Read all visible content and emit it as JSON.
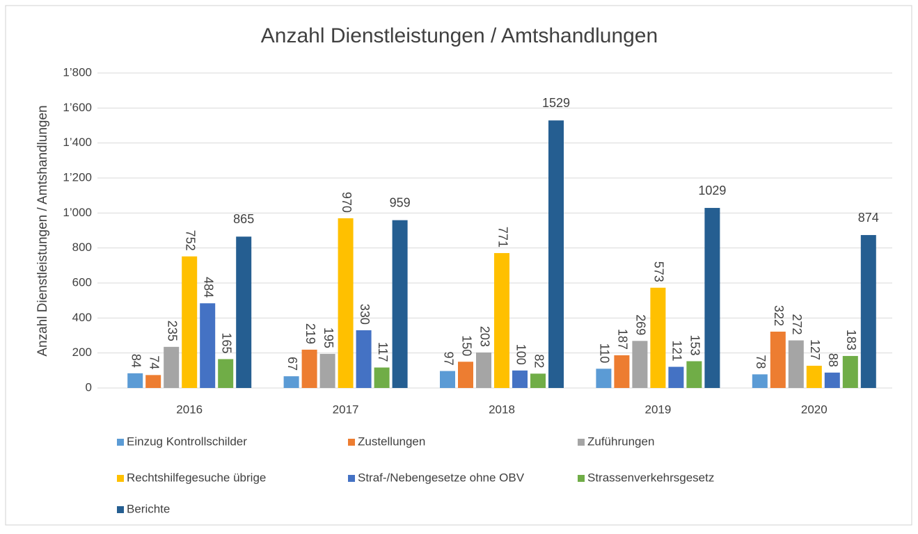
{
  "chart_data": {
    "type": "bar",
    "title": "Anzahl Dienstleistungen / Amtshandlungen",
    "y_label": "Anzahl Dienstleistungen / Amtshandlungen",
    "categories": [
      "2016",
      "2017",
      "2018",
      "2019",
      "2020"
    ],
    "series": [
      {
        "name": "Einzug Kontrollschilder",
        "color": "#5b9bd5",
        "values": [
          84,
          67,
          97,
          110,
          78
        ]
      },
      {
        "name": "Zustellungen",
        "color": "#ed7d31",
        "values": [
          74,
          219,
          150,
          187,
          322
        ]
      },
      {
        "name": "Zuführungen",
        "color": "#a5a5a5",
        "values": [
          235,
          195,
          203,
          269,
          272
        ]
      },
      {
        "name": "Rechtshilfegesuche übrige",
        "color": "#ffc000",
        "values": [
          752,
          970,
          771,
          573,
          127
        ]
      },
      {
        "name": "Straf-/Nebengesetze ohne OBV",
        "color": "#4472c4",
        "values": [
          484,
          330,
          100,
          121,
          88
        ]
      },
      {
        "name": "Strassenverkehrsgesetz",
        "color": "#70ad47",
        "values": [
          165,
          117,
          82,
          153,
          183
        ]
      },
      {
        "name": "Berichte",
        "color": "#255e91",
        "values": [
          865,
          959,
          1529,
          1029,
          874
        ]
      }
    ],
    "ylim": [
      0,
      1800
    ],
    "yticks": [
      0,
      200,
      400,
      600,
      800,
      {
        "value": 1000,
        "label": "1’000"
      },
      {
        "value": 1200,
        "label": "1’200"
      },
      {
        "value": 1400,
        "label": "1’400"
      },
      {
        "value": 1600,
        "label": "1’600"
      },
      {
        "value": 1800,
        "label": "1’800"
      }
    ],
    "grid": true,
    "legend": "bottom"
  }
}
